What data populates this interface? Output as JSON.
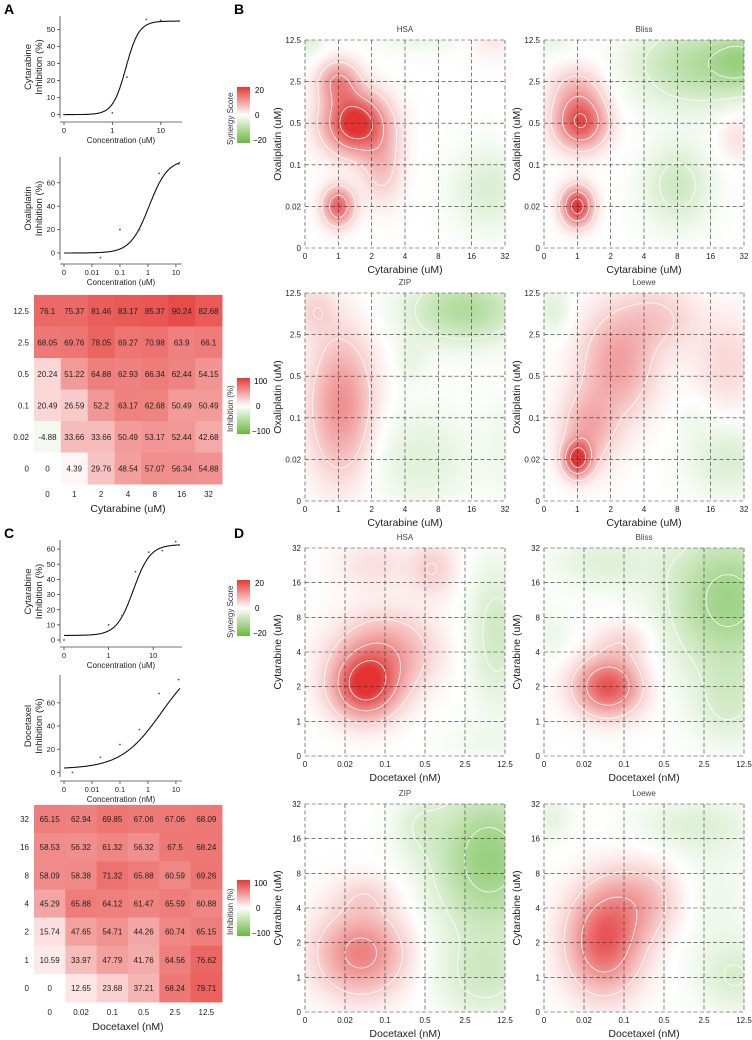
{
  "panels": {
    "A": "A",
    "B": "B",
    "C": "C",
    "D": "D"
  },
  "legend_synergy": {
    "title": "Synergy Score",
    "max": "20",
    "zero": "0",
    "min": "−20"
  },
  "legend_inhibition": {
    "title": "Inhibition (%)",
    "max": "100",
    "zero": "0",
    "min": "−100"
  },
  "chart_data": [
    {
      "id": "A1",
      "type": "line",
      "title": "",
      "ylabel": "Cytarabine\nInhibition (%)",
      "xlabel": "Concentration (uM)",
      "xticks": [
        "0",
        "1",
        "10"
      ],
      "yticks": [
        "0",
        "10",
        "20",
        "30",
        "40",
        "50"
      ],
      "ylim": [
        -2,
        58
      ],
      "curve": {
        "bottom": 0,
        "top": 55,
        "ec50": 1.9,
        "hill": 3.2
      },
      "points": [
        [
          0,
          0
        ],
        [
          1,
          1
        ],
        [
          2,
          22
        ],
        [
          5,
          56
        ],
        [
          10,
          55.5
        ],
        [
          20,
          55
        ]
      ]
    },
    {
      "id": "A2",
      "type": "line",
      "title": "",
      "ylabel": "Oxaliplatin\nInhibition (%)",
      "xlabel": "Concentration (uM)",
      "xticks": [
        "0",
        "0.01",
        "0.1",
        "1",
        "10"
      ],
      "yticks": [
        "0",
        "20",
        "40",
        "60"
      ],
      "ylim": [
        -6,
        82
      ],
      "curve": {
        "bottom": 0,
        "top": 80,
        "ec50": 1.1,
        "hill": 1.3
      },
      "points": [
        [
          0.002,
          0
        ],
        [
          0.02,
          -4
        ],
        [
          0.1,
          20
        ],
        [
          0.5,
          20
        ],
        [
          2.5,
          68
        ],
        [
          12.5,
          76
        ]
      ]
    },
    {
      "id": "A3",
      "type": "heatmap",
      "title": "",
      "xlabel": "Cytarabine (uM)",
      "ylabel": "",
      "x": [
        "0",
        "1",
        "2",
        "4",
        "8",
        "16",
        "32"
      ],
      "y": [
        "12.5",
        "2.5",
        "0.5",
        "0.1",
        "0.02",
        "0"
      ],
      "values": [
        [
          "76.1",
          "75.37",
          "81.46",
          "83.17",
          "85.37",
          "90.24",
          "82.68"
        ],
        [
          "68.05",
          "69.76",
          "78.05",
          "69.27",
          "70.98",
          "63.9",
          "66.1"
        ],
        [
          "20.24",
          "51.22",
          "64.88",
          "62.93",
          "66.34",
          "62.44",
          "54.15"
        ],
        [
          "20.49",
          "26.59",
          "52.2",
          "63.17",
          "62.68",
          "50.49",
          "50.49"
        ],
        [
          "-4.88",
          "33.66",
          "33.66",
          "50.49",
          "53.17",
          "52.44",
          "42.68"
        ],
        [
          "0",
          "4.39",
          "29.76",
          "48.54",
          "57.07",
          "56.34",
          "54.88"
        ]
      ]
    },
    {
      "id": "C1",
      "type": "line",
      "title": "",
      "ylabel": "Cytarabine\nInhibition (%)",
      "xlabel": "Concentration (uM)",
      "xticks": [
        "0",
        "1",
        "10"
      ],
      "yticks": [
        "0",
        "10",
        "20",
        "30",
        "40",
        "50",
        "60"
      ],
      "ylim": [
        -2,
        66
      ],
      "curve": {
        "bottom": 3,
        "top": 63,
        "ec50": 3.6,
        "hill": 2.3
      },
      "points": [
        [
          0,
          0
        ],
        [
          1,
          10
        ],
        [
          2,
          16
        ],
        [
          4,
          45
        ],
        [
          8,
          58
        ],
        [
          16,
          59
        ],
        [
          32,
          65
        ]
      ]
    },
    {
      "id": "C2",
      "type": "line",
      "title": "",
      "ylabel": "Docetaxel\nInhibition (%)",
      "xlabel": "Concentration (nM)",
      "xticks": [
        "0",
        "0.01",
        "0.1",
        "1",
        "10"
      ],
      "yticks": [
        "0",
        "20",
        "40",
        "60"
      ],
      "ylim": [
        -4,
        84
      ],
      "curve": {
        "bottom": 3,
        "top": 100,
        "ec50": 3.0,
        "hill": 0.6
      },
      "points": [
        [
          0.002,
          0
        ],
        [
          0.02,
          13
        ],
        [
          0.1,
          24
        ],
        [
          0.5,
          37
        ],
        [
          2.5,
          68
        ],
        [
          12.5,
          80
        ]
      ]
    },
    {
      "id": "C3",
      "type": "heatmap",
      "title": "",
      "xlabel": "Docetaxel (nM)",
      "ylabel": "",
      "x": [
        "0",
        "0.02",
        "0.1",
        "0.5",
        "2.5",
        "12.5"
      ],
      "y": [
        "32",
        "16",
        "8",
        "4",
        "2",
        "1",
        "0"
      ],
      "values": [
        [
          "65.15",
          "62.94",
          "69.85",
          "67.06",
          "67.06",
          "68.09"
        ],
        [
          "58.53",
          "56.32",
          "61.32",
          "56.32",
          "67.5",
          "68.24"
        ],
        [
          "58.09",
          "58.38",
          "71.32",
          "65.88",
          "60.59",
          "69.26"
        ],
        [
          "45.29",
          "65.88",
          "64.12",
          "61.47",
          "65.59",
          "60.88"
        ],
        [
          "15.74",
          "47.65",
          "54.71",
          "44.26",
          "60.74",
          "65.15"
        ],
        [
          "10.59",
          "33.97",
          "47.79",
          "41.76",
          "64.56",
          "76.62"
        ],
        [
          "0",
          "12.65",
          "23.68",
          "37.21",
          "68.24",
          "79.71"
        ]
      ]
    },
    {
      "id": "B-HSA",
      "type": "heatmap",
      "title": "HSA",
      "xlabel": "Cytarabine (uM)",
      "ylabel": "Oxaliplatin (uM)",
      "x": [
        "0",
        "1",
        "2",
        "4",
        "8",
        "16",
        "32"
      ],
      "y": [
        "0",
        "0.02",
        "0.1",
        "0.5",
        "2.5",
        "12.5"
      ],
      "blobs": [
        [
          1,
          1,
          0.45,
          0.45,
          20
        ],
        [
          1.5,
          3,
          0.9,
          0.7,
          28
        ],
        [
          1,
          4,
          0.6,
          0.5,
          14
        ],
        [
          2.3,
          2,
          0.6,
          0.9,
          8
        ],
        [
          5.6,
          5.2,
          0.8,
          0.6,
          4
        ],
        [
          5.5,
          1.4,
          1.1,
          1.0,
          -6
        ],
        [
          3.5,
          5.3,
          1.6,
          0.5,
          -5
        ],
        [
          0.1,
          5.2,
          0.5,
          0.6,
          -6
        ]
      ]
    },
    {
      "id": "B-Bliss",
      "type": "heatmap",
      "title": "Bliss",
      "xlabel": "Cytarabine (uM)",
      "ylabel": "Oxaliplatin (uM)",
      "x": [
        "0",
        "1",
        "2",
        "4",
        "8",
        "16",
        "32"
      ],
      "y": [
        "0",
        "0.02",
        "0.1",
        "0.5",
        "2.5",
        "12.5"
      ],
      "blobs": [
        [
          1,
          1,
          0.45,
          0.45,
          26
        ],
        [
          1.1,
          3,
          0.75,
          0.6,
          22
        ],
        [
          1,
          3.8,
          0.8,
          0.6,
          8
        ],
        [
          4.6,
          4.4,
          1.9,
          1.0,
          -12
        ],
        [
          6,
          4.5,
          0.9,
          0.7,
          -10
        ],
        [
          4,
          1.5,
          1.0,
          1.0,
          -8
        ],
        [
          5.8,
          2.7,
          0.6,
          0.6,
          4
        ],
        [
          0.2,
          5.2,
          0.7,
          0.6,
          -4
        ]
      ]
    },
    {
      "id": "B-ZIP",
      "type": "heatmap",
      "title": "ZIP",
      "xlabel": "Cytarabine (uM)",
      "ylabel": "Oxaliplatin (uM)",
      "x": [
        "0",
        "1",
        "2",
        "4",
        "8",
        "16",
        "32"
      ],
      "y": [
        "0",
        "0.02",
        "0.1",
        "0.5",
        "2.5",
        "12.5"
      ],
      "blobs": [
        [
          1.1,
          2.3,
          0.95,
          1.7,
          14
        ],
        [
          0.3,
          4.6,
          0.6,
          0.6,
          5
        ],
        [
          4.8,
          4.6,
          1.7,
          0.8,
          -13
        ],
        [
          3.5,
          1,
          1.5,
          1.2,
          -5
        ],
        [
          6.2,
          1.3,
          0.8,
          1.3,
          -3
        ],
        [
          3.2,
          3.4,
          0.5,
          0.6,
          -3
        ]
      ]
    },
    {
      "id": "B-Loewe",
      "type": "heatmap",
      "title": "Loewe",
      "xlabel": "Cytarabine (uM)",
      "ylabel": "Oxaliplatin (uM)",
      "x": [
        "0",
        "1",
        "2",
        "4",
        "8",
        "16",
        "32"
      ],
      "y": [
        "0",
        "0.02",
        "0.1",
        "0.5",
        "2.5",
        "12.5"
      ],
      "blobs": [
        [
          1,
          1,
          0.4,
          0.4,
          24
        ],
        [
          1.3,
          1.7,
          0.8,
          0.9,
          10
        ],
        [
          2.2,
          3.3,
          1.1,
          1.3,
          12
        ],
        [
          3.5,
          4.4,
          1.1,
          0.8,
          6
        ],
        [
          5.5,
          3.3,
          1.0,
          1.2,
          5
        ],
        [
          5.5,
          1.0,
          1.2,
          0.9,
          -6
        ],
        [
          0.3,
          4.6,
          0.5,
          0.6,
          -5
        ],
        [
          4.5,
          2,
          0.5,
          0.5,
          -2
        ]
      ]
    },
    {
      "id": "D-HSA",
      "type": "heatmap",
      "title": "HSA",
      "xlabel": "Docetaxel (nM)",
      "ylabel": "Cytarabine (uM)",
      "x": [
        "0",
        "0.02",
        "0.1",
        "0.5",
        "2.5",
        "12.5"
      ],
      "y": [
        "0",
        "1",
        "2",
        "4",
        "8",
        "16",
        "32"
      ],
      "blobs": [
        [
          1.5,
          2,
          0.8,
          0.9,
          24
        ],
        [
          2,
          3,
          1.2,
          1.1,
          12
        ],
        [
          1.7,
          5.5,
          0.9,
          0.7,
          4
        ],
        [
          3.2,
          5.4,
          0.6,
          0.8,
          6
        ],
        [
          4.8,
          3.5,
          0.7,
          2.0,
          -8
        ],
        [
          4.5,
          0.4,
          1.2,
          0.6,
          -2
        ]
      ]
    },
    {
      "id": "D-Bliss",
      "type": "heatmap",
      "title": "Bliss",
      "xlabel": "Docetaxel (nM)",
      "ylabel": "Cytarabine (uM)",
      "x": [
        "0",
        "0.02",
        "0.1",
        "0.5",
        "2.5",
        "12.5"
      ],
      "y": [
        "0",
        "1",
        "2",
        "4",
        "8",
        "16",
        "32"
      ],
      "blobs": [
        [
          1.6,
          2,
          0.8,
          0.8,
          22
        ],
        [
          2,
          3.3,
          0.7,
          0.6,
          5
        ],
        [
          4.6,
          4.5,
          1.5,
          2.0,
          -16
        ],
        [
          4.6,
          1.5,
          0.9,
          1.2,
          -6
        ],
        [
          1.5,
          5.6,
          1.3,
          0.8,
          -5
        ],
        [
          0.2,
          3.5,
          0.5,
          0.7,
          -3
        ]
      ]
    },
    {
      "id": "D-ZIP",
      "type": "heatmap",
      "title": "ZIP",
      "xlabel": "Docetaxel (nM)",
      "ylabel": "Cytarabine (uM)",
      "x": [
        "0",
        "0.02",
        "0.1",
        "0.5",
        "2.5",
        "12.5"
      ],
      "y": [
        "0",
        "1",
        "2",
        "4",
        "8",
        "16",
        "32"
      ],
      "blobs": [
        [
          1.4,
          1.7,
          1.1,
          1.2,
          16
        ],
        [
          1.5,
          3.4,
          0.8,
          0.6,
          4
        ],
        [
          4.6,
          4.4,
          1.4,
          2.1,
          -17
        ],
        [
          4.5,
          1.0,
          1.2,
          1.2,
          -7
        ],
        [
          2.8,
          5.4,
          0.6,
          0.9,
          -4
        ]
      ]
    },
    {
      "id": "D-Loewe",
      "type": "heatmap",
      "title": "Loewe",
      "xlabel": "Docetaxel (nM)",
      "ylabel": "Cytarabine (uM)",
      "x": [
        "0",
        "0.02",
        "0.1",
        "0.5",
        "2.5",
        "12.5"
      ],
      "y": [
        "0",
        "1",
        "2",
        "4",
        "8",
        "16",
        "32"
      ],
      "blobs": [
        [
          1.5,
          2,
          0.9,
          1.4,
          20
        ],
        [
          2.4,
          3.2,
          1.1,
          1.1,
          9
        ],
        [
          4.2,
          3.2,
          1.0,
          1.8,
          -3
        ],
        [
          4.8,
          1.0,
          0.9,
          1.0,
          -6
        ],
        [
          3.8,
          5.4,
          1.5,
          0.8,
          -5
        ],
        [
          0.2,
          5.6,
          0.5,
          0.7,
          -4
        ]
      ]
    }
  ]
}
